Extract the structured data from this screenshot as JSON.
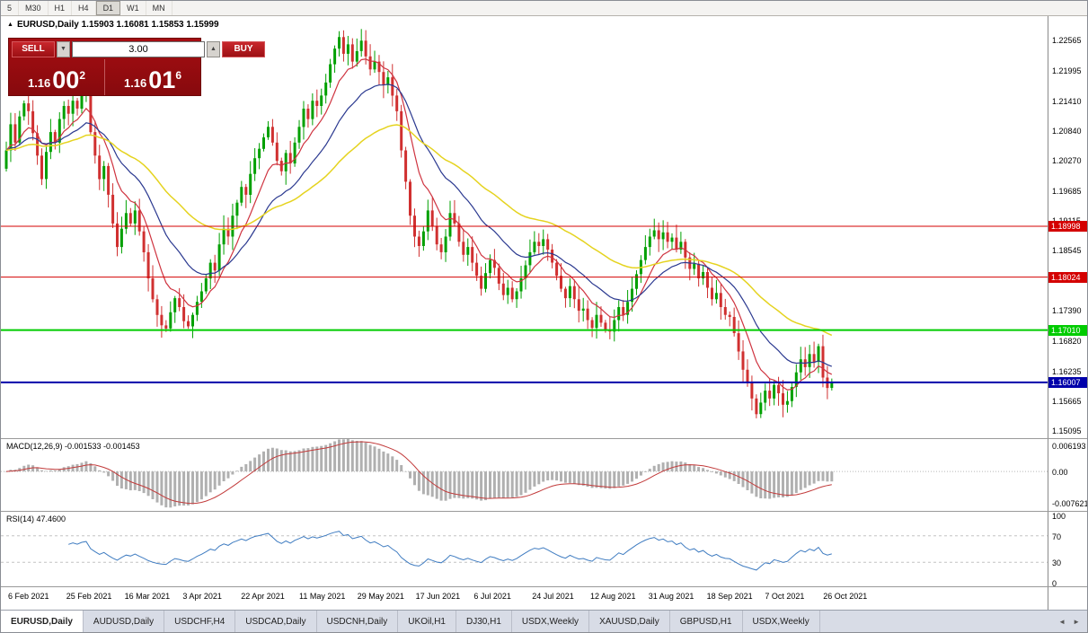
{
  "toolbar": {
    "timeframes": [
      "5",
      "M30",
      "H1",
      "H4",
      "D1",
      "W1",
      "MN"
    ],
    "active_timeframe": "D1"
  },
  "chart": {
    "symbol_line": "EURUSD,Daily 1.15903 1.16081 1.15853 1.15999",
    "price_axis_ticks": [
      "1.22565",
      "1.21995",
      "1.21410",
      "1.20840",
      "1.20270",
      "1.19685",
      "1.19115",
      "1.18545",
      "1.17390",
      "1.16820",
      "1.16235",
      "1.15665",
      "1.15095"
    ],
    "date_axis_ticks": [
      "6 Feb 2021",
      "25 Feb 2021",
      "16 Mar 2021",
      "3 Apr 2021",
      "22 Apr 2021",
      "11 May 2021",
      "29 May 2021",
      "17 Jun 2021",
      "6 Jul 2021",
      "24 Jul 2021",
      "12 Aug 2021",
      "31 Aug 2021",
      "18 Sep 2021",
      "7 Oct 2021",
      "26 Oct 2021"
    ]
  },
  "trade_panel": {
    "sell_label": "SELL",
    "buy_label": "BUY",
    "volume": "3.00",
    "spin_down_icon": "▼",
    "spin_up_icon": "▲",
    "sell_price": {
      "big": "1.16",
      "mid": "00",
      "sup": "2"
    },
    "buy_price": {
      "big": "1.16",
      "mid": "01",
      "sup": "6"
    }
  },
  "indicators": {
    "macd": {
      "label": "MACD(12,26,9) -0.001533 -0.001453",
      "axis_ticks": [
        "0.006193",
        "0.00",
        "-0.007621"
      ]
    },
    "rsi": {
      "label": "RSI(14) 47.4600",
      "axis_ticks": [
        "100",
        "70",
        "30",
        "0"
      ]
    }
  },
  "tabs": {
    "items": [
      "EURUSD,Daily",
      "AUDUSD,Daily",
      "USDCHF,H4",
      "USDCAD,Daily",
      "USDCNH,Daily",
      "UKOil,H1",
      "DJ30,H1",
      "USDX,Weekly",
      "XAUUSD,Daily",
      "GBPUSD,H1",
      "USDX,Weekly"
    ],
    "active_index": 0,
    "scroll_left_icon": "◄",
    "scroll_right_icon": "►"
  },
  "chart_data": {
    "type": "candlestick",
    "symbol": "EURUSD",
    "timeframe": "Daily",
    "ylim": [
      1.1494,
      1.2302
    ],
    "up_color": "#00a000",
    "down_color": "#d03030",
    "closes": [
      1.2045,
      1.2095,
      1.206,
      1.211,
      1.2135,
      1.212,
      1.2078,
      1.2035,
      1.199,
      1.2042,
      1.208,
      1.206,
      1.2105,
      1.213,
      1.2115,
      1.214,
      1.2125,
      1.2155,
      1.217,
      1.208,
      1.2035,
      1.199,
      1.2015,
      1.196,
      1.1905,
      1.186,
      1.1895,
      1.1925,
      1.1905,
      1.193,
      1.189,
      1.185,
      1.18,
      1.176,
      1.173,
      1.171,
      1.1704,
      1.1735,
      1.1762,
      1.1745,
      1.1718,
      1.1708,
      1.173,
      1.1755,
      1.1775,
      1.18,
      1.183,
      1.1815,
      1.1865,
      1.1895,
      1.188,
      1.192,
      1.1945,
      1.1975,
      1.196,
      1.2,
      1.203,
      1.2048,
      1.207,
      1.209,
      1.206,
      1.2025,
      1.2005,
      1.204,
      1.202,
      1.206,
      1.209,
      1.2125,
      1.2105,
      1.214,
      1.213,
      1.215,
      1.2175,
      1.221,
      1.224,
      1.2262,
      1.223,
      1.2248,
      1.2215,
      1.2235,
      1.2255,
      1.2225,
      1.22,
      1.2215,
      1.2195,
      1.217,
      1.2185,
      1.215,
      1.212,
      1.2045,
      1.1985,
      1.192,
      1.188,
      1.1862,
      1.189,
      1.193,
      1.19,
      1.1865,
      1.185,
      1.188,
      1.1925,
      1.1905,
      1.187,
      1.1845,
      1.186,
      1.183,
      1.1805,
      1.178,
      1.181,
      1.1835,
      1.182,
      1.179,
      1.1768,
      1.1782,
      1.176,
      1.1775,
      1.18,
      1.1825,
      1.185,
      1.187,
      1.1862,
      1.1875,
      1.1855,
      1.183,
      1.1805,
      1.178,
      1.1762,
      1.1785,
      1.176,
      1.1738,
      1.1742,
      1.172,
      1.1705,
      1.173,
      1.1715,
      1.1702,
      1.1698,
      1.172,
      1.1745,
      1.173,
      1.1755,
      1.178,
      1.1808,
      1.1835,
      1.186,
      1.188,
      1.1892,
      1.1875,
      1.1888,
      1.187,
      1.1878,
      1.1855,
      1.187,
      1.184,
      1.1818,
      1.1828,
      1.18,
      1.1812,
      1.1782,
      1.176,
      1.1772,
      1.1745,
      1.173,
      1.1726,
      1.1695,
      1.166,
      1.1625,
      1.16,
      1.157,
      1.154,
      1.1562,
      1.1585,
      1.157,
      1.1596,
      1.158,
      1.1558,
      1.1565,
      1.1592,
      1.162,
      1.1645,
      1.163,
      1.1655,
      1.164,
      1.167,
      1.161,
      1.159,
      1.15999
    ],
    "last_ohlc": {
      "open": 1.15903,
      "high": 1.16081,
      "low": 1.15853,
      "close": 1.15999
    },
    "moving_averages": [
      {
        "name": "fast",
        "period": 9,
        "color": "#cf3440",
        "width": 1.2
      },
      {
        "name": "medium",
        "period": 21,
        "color": "#2b3990",
        "width": 1.2
      },
      {
        "name": "slow",
        "period": 50,
        "color": "#e5d31f",
        "width": 1.5
      }
    ],
    "hlines": [
      {
        "price": 1.18998,
        "label": "1.18998",
        "color": "#d40000",
        "width": 1
      },
      {
        "price": 1.18024,
        "label": "1.18024",
        "color": "#d40000",
        "width": 1
      },
      {
        "price": 1.1701,
        "label": "1.17010",
        "color": "#00cc00",
        "width": 2
      },
      {
        "price": 1.16007,
        "label": "1.16007",
        "color": "#0000aa",
        "width": 2
      }
    ],
    "macd": {
      "params": [
        12,
        26,
        9
      ],
      "ylim": [
        -0.0095,
        0.0078
      ],
      "hist_color": "#b0b0b0",
      "signal_color": "#c23b3b"
    },
    "rsi": {
      "period": 14,
      "value": 47.46,
      "levels": [
        70,
        30
      ],
      "ylim": [
        0,
        100
      ],
      "line_color": "#3f7cc1"
    }
  }
}
